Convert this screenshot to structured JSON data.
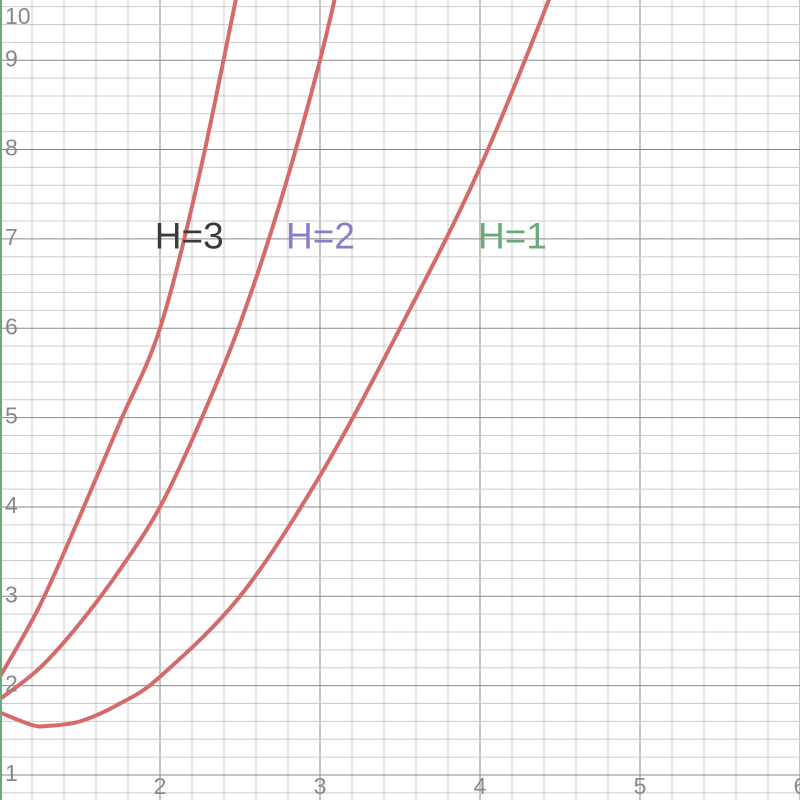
{
  "chart_data": {
    "type": "line",
    "title": "",
    "xlabel": "",
    "ylabel": "",
    "xlim": [
      1,
      6
    ],
    "ylim": [
      1,
      10
    ],
    "x_ticks": [
      "2",
      "3",
      "4",
      "5",
      "6"
    ],
    "y_ticks": [
      "1",
      "2",
      "3",
      "4",
      "5",
      "6",
      "7",
      "8",
      "9",
      "10"
    ],
    "grid": true,
    "series": [
      {
        "name": "H=3",
        "color": "#d46a6a",
        "points": [
          [
            1.0,
            2.1
          ],
          [
            1.25,
            2.9
          ],
          [
            1.5,
            3.9
          ],
          [
            1.75,
            4.95
          ],
          [
            2.0,
            6.0
          ],
          [
            2.25,
            7.75
          ],
          [
            2.5,
            9.9
          ],
          [
            2.56,
            10.3
          ]
        ]
      },
      {
        "name": "H=2",
        "color": "#d46a6a",
        "points": [
          [
            1.0,
            1.85
          ],
          [
            1.25,
            2.2
          ],
          [
            1.5,
            2.7
          ],
          [
            1.75,
            3.3
          ],
          [
            2.0,
            4.0
          ],
          [
            2.25,
            4.95
          ],
          [
            2.5,
            6.05
          ],
          [
            2.75,
            7.4
          ],
          [
            3.0,
            9.0
          ],
          [
            3.17,
            10.3
          ]
        ]
      },
      {
        "name": "H=1",
        "color": "#d46a6a",
        "points": [
          [
            1.0,
            1.7
          ],
          [
            1.2,
            1.56
          ],
          [
            1.3,
            1.55
          ],
          [
            1.5,
            1.6
          ],
          [
            1.75,
            1.8
          ],
          [
            2.0,
            2.1
          ],
          [
            2.5,
            3.0
          ],
          [
            3.0,
            4.35
          ],
          [
            3.5,
            6.0
          ],
          [
            4.0,
            7.8
          ],
          [
            4.5,
            10.0
          ],
          [
            4.53,
            10.3
          ]
        ]
      }
    ],
    "annotations": [
      {
        "text": "H=3",
        "x": 1.98,
        "y": 7.0,
        "color": "#3a3a3a"
      },
      {
        "text": "H=2",
        "x": 2.8,
        "y": 7.0,
        "color": "#8a7cc8"
      },
      {
        "text": "H=1",
        "x": 4.0,
        "y": 7.0,
        "color": "#6aaa7a"
      }
    ]
  }
}
